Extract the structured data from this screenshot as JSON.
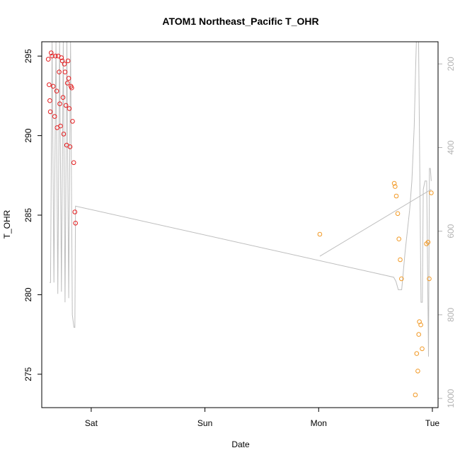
{
  "chart_data": {
    "type": "scatter",
    "title": "ATOM1 Northeast_Pacific T_OHR",
    "xlabel": "Date",
    "ylabel": "T_OHR",
    "x_ticks": [
      "Sat",
      "Sun",
      "Mon",
      "Tue"
    ],
    "x_tick_days": [
      1,
      2,
      3,
      4
    ],
    "xlim_days": [
      0.565,
      4.05
    ],
    "ylim": [
      272.9,
      295.9
    ],
    "y_ticks": [
      275,
      280,
      285,
      290,
      295
    ],
    "y2_ticks": [
      200,
      400,
      600,
      800,
      1000
    ],
    "y2lim": [
      1022,
      147
    ],
    "grid": false,
    "legend": "none",
    "colors": {
      "series1": "#e41a1c",
      "series2": "#f29a27",
      "trace": "#bebebe"
    },
    "series": [
      {
        "color": "red",
        "points": [
          [
            0.622,
            294.8
          ],
          [
            0.63,
            293.2
          ],
          [
            0.636,
            292.2
          ],
          [
            0.64,
            291.5
          ],
          [
            0.648,
            295.2
          ],
          [
            0.656,
            295.0
          ],
          [
            0.666,
            293.1
          ],
          [
            0.678,
            291.2
          ],
          [
            0.686,
            295.0
          ],
          [
            0.696,
            292.8
          ],
          [
            0.7,
            290.5
          ],
          [
            0.71,
            295.0
          ],
          [
            0.718,
            294.0
          ],
          [
            0.724,
            292.0
          ],
          [
            0.73,
            290.6
          ],
          [
            0.738,
            294.9
          ],
          [
            0.746,
            294.7
          ],
          [
            0.752,
            292.4
          ],
          [
            0.758,
            290.1
          ],
          [
            0.764,
            294.5
          ],
          [
            0.77,
            294.0
          ],
          [
            0.778,
            291.9
          ],
          [
            0.784,
            289.4
          ],
          [
            0.79,
            293.3
          ],
          [
            0.796,
            294.7
          ],
          [
            0.802,
            293.6
          ],
          [
            0.808,
            291.7
          ],
          [
            0.814,
            289.3
          ],
          [
            0.822,
            293.1
          ],
          [
            0.828,
            293.0
          ],
          [
            0.836,
            290.9
          ],
          [
            0.846,
            288.3
          ],
          [
            0.856,
            285.2
          ],
          [
            0.862,
            284.5
          ]
        ]
      },
      {
        "color": "orange",
        "points": [
          [
            3.01,
            283.8
          ],
          [
            3.665,
            287.0
          ],
          [
            3.672,
            286.8
          ],
          [
            3.683,
            286.2
          ],
          [
            3.695,
            285.1
          ],
          [
            3.706,
            283.5
          ],
          [
            3.717,
            282.2
          ],
          [
            3.728,
            281.0
          ],
          [
            3.85,
            273.7
          ],
          [
            3.862,
            276.3
          ],
          [
            3.872,
            275.2
          ],
          [
            3.88,
            277.5
          ],
          [
            3.886,
            278.3
          ],
          [
            3.898,
            278.1
          ],
          [
            3.91,
            276.6
          ],
          [
            3.948,
            283.2
          ],
          [
            3.962,
            283.3
          ],
          [
            3.972,
            281.0
          ],
          [
            3.99,
            286.4
          ]
        ]
      }
    ],
    "trace_secondary_axis": {
      "note": "grey line plotted against the right-hand axis",
      "points": [
        [
          0.634,
          723
        ],
        [
          0.642,
          723
        ],
        [
          0.656,
          147
        ],
        [
          0.672,
          723
        ],
        [
          0.69,
          147
        ],
        [
          0.706,
          750
        ],
        [
          0.722,
          147
        ],
        [
          0.738,
          745
        ],
        [
          0.754,
          147
        ],
        [
          0.77,
          770
        ],
        [
          0.786,
          147
        ],
        [
          0.802,
          760
        ],
        [
          0.818,
          147
        ],
        [
          0.834,
          800
        ],
        [
          0.848,
          830
        ],
        [
          0.856,
          830
        ],
        [
          0.862,
          540
        ],
        [
          3.66,
          710
        ],
        [
          3.68,
          720
        ],
        [
          3.7,
          740
        ],
        [
          3.73,
          740
        ],
        [
          3.76,
          650
        ],
        [
          3.8,
          550
        ],
        [
          3.82,
          480
        ],
        [
          3.84,
          350
        ],
        [
          3.853,
          210
        ],
        [
          3.864,
          100
        ],
        [
          3.876,
          60
        ],
        [
          3.9,
          770
        ],
        [
          3.912,
          770
        ],
        [
          3.92,
          500
        ],
        [
          3.935,
          480
        ],
        [
          3.95,
          480
        ],
        [
          3.966,
          900
        ],
        [
          3.974,
          450
        ],
        [
          3.982,
          450
        ],
        [
          3.99,
          480
        ]
      ],
      "segment2": [
        [
          3.01,
          660
        ],
        [
          3.99,
          500
        ]
      ]
    }
  }
}
